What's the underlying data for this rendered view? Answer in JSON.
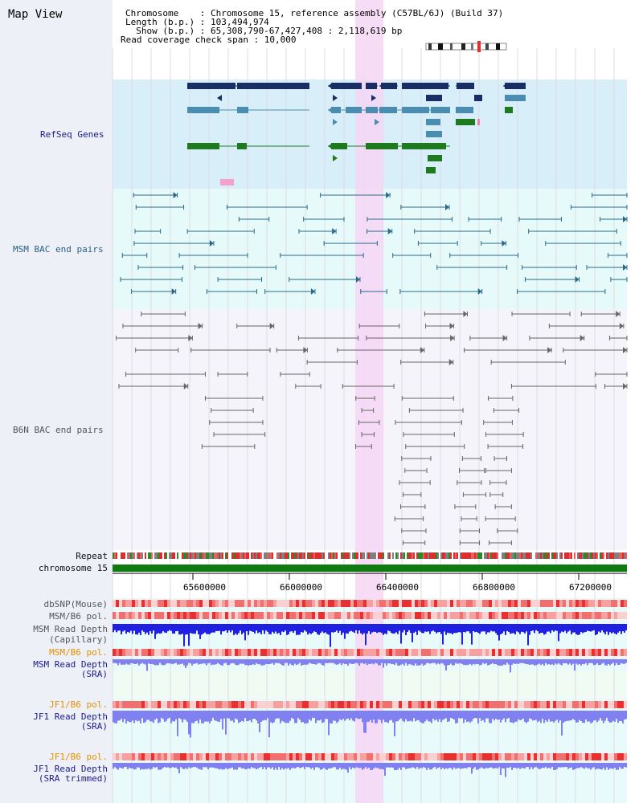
{
  "view": {
    "title": "Map View",
    "header": {
      "line1": "Chromosome    : Chromosome 15, reference assembly (C57BL/6J) (Build 37)",
      "line2": "Length (b.p.) : 103,494,974",
      "line3": "  Show (b.p.) : 65,308,790-67,427,408 : 2,118,619 bp",
      "line4": "Read coverage check span : 10,000"
    }
  },
  "tracks": {
    "refseq": "RefSeq Genes",
    "msm_bac": "MSM BAC end pairs",
    "b6n_bac": "B6N BAC end pairs",
    "repeat": "Repeat",
    "chromosome": "chromosome 15",
    "dbsnp": "dbSNP(Mouse)",
    "msm_pol_1": "MSM/B6 pol.",
    "msm_depth_cap_1": "MSM Read Depth",
    "msm_depth_cap_2": "(Capillary)",
    "msm_pol_2": "MSM/B6 pol.",
    "msm_depth_sra_1": "MSM Read Depth",
    "msm_depth_sra_2": "(SRA)",
    "jf1_pol_1": "JF1/B6 pol.",
    "jf1_depth_sra_1": "JF1 Read Depth",
    "jf1_depth_sra_2": "(SRA)",
    "jf1_pol_2": "JF1/B6 pol.",
    "jf1_depth_trim_1": "JF1 Read Depth",
    "jf1_depth_trim_2": "(SRA trimmed)"
  },
  "axis": {
    "ticks": [
      "65600000",
      "66000000",
      "66400000",
      "66800000",
      "67200000"
    ]
  },
  "colors": {
    "highlight": "#f6d6f4",
    "refseq_bg": "#d8eef8",
    "msm_bac_bg": "#e6fafa",
    "navy": "#1a2e66",
    "steel": "#4a8db0",
    "green": "#1f7a1f",
    "bac_line": "#2a6a88",
    "b6n_line": "#666666",
    "depth_blue": "#2020e0",
    "depth_sra": "#8080f0",
    "pol_red": "#f07070"
  }
}
